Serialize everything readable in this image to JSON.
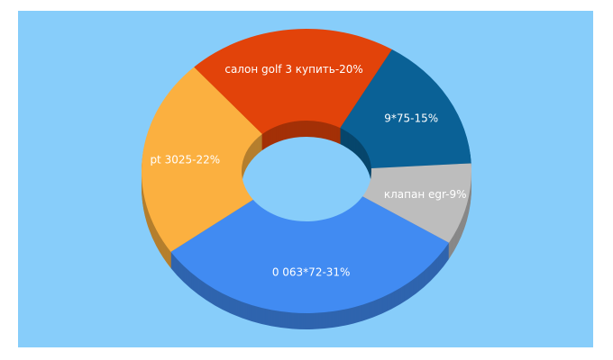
{
  "chart_data": {
    "type": "donut3d",
    "values": [
      20,
      15,
      9,
      31,
      22
    ],
    "value_labels": [
      "салон golf 3 купить-20%",
      "9*75-15%",
      "клапан egr-9%",
      "0 063*72-31%",
      "pt 3025-22%"
    ],
    "colors": [
      "#e2430a",
      "#0a6196",
      "#bdbdbd",
      "#418bf2",
      "#fbb040"
    ]
  }
}
